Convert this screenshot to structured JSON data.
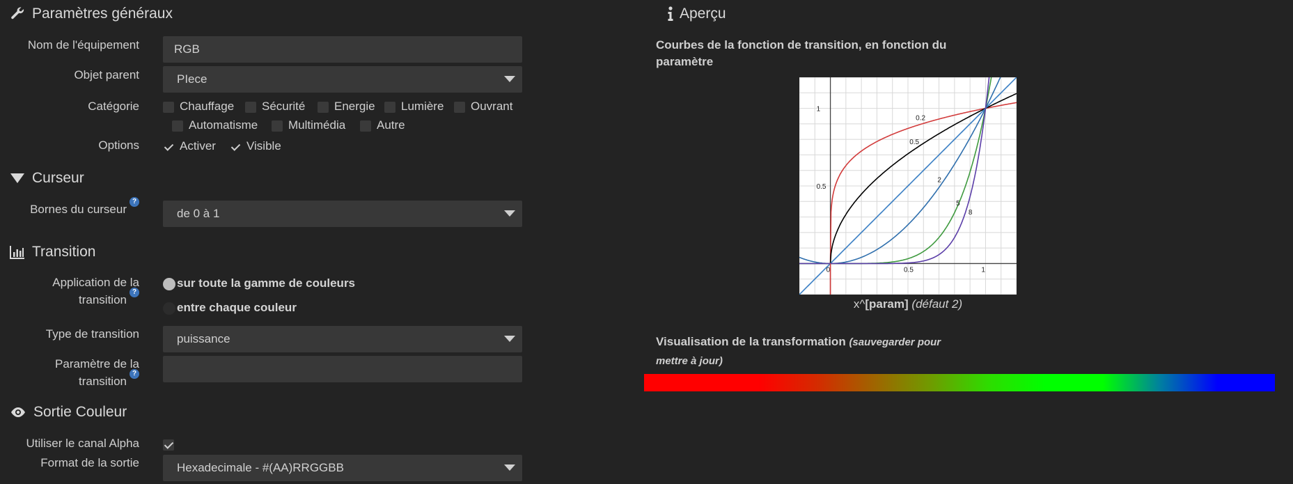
{
  "general": {
    "title": "Paramètres généraux",
    "name_label": "Nom de l'équipement",
    "name_value": "RGB",
    "parent_label": "Objet parent",
    "parent_value": "PIece",
    "category_label": "Catégorie",
    "categories": [
      {
        "label": "Chauffage",
        "checked": false
      },
      {
        "label": "Sécurité",
        "checked": false
      },
      {
        "label": "Energie",
        "checked": false
      },
      {
        "label": "Lumière",
        "checked": false
      },
      {
        "label": "Ouvrant",
        "checked": false
      },
      {
        "label": "Automatisme",
        "checked": false
      },
      {
        "label": "Multimédia",
        "checked": false
      },
      {
        "label": "Autre",
        "checked": false
      }
    ],
    "options_label": "Options",
    "options": [
      {
        "label": "Activer",
        "checked": true
      },
      {
        "label": "Visible",
        "checked": true
      }
    ]
  },
  "cursor": {
    "title": "Curseur",
    "bounds_label": "Bornes du curseur",
    "bounds_value": "de 0 à 1"
  },
  "transition": {
    "title": "Transition",
    "application_label_1": "Application de la",
    "application_label_2": "transition",
    "application_options": [
      {
        "label": "sur toute la gamme de couleurs",
        "selected": true
      },
      {
        "label": "entre chaque couleur",
        "selected": false
      }
    ],
    "type_label": "Type de transition",
    "type_value": "puissance",
    "param_label_1": "Paramètre de la",
    "param_label_2": "transition",
    "param_value": ""
  },
  "output": {
    "title": "Sortie Couleur",
    "alpha_label": "Utiliser le canal Alpha",
    "alpha_checked": true,
    "format_label": "Format de la sortie",
    "format_value": "Hexadecimale - #(AA)RRGGBB"
  },
  "preview": {
    "title": "Aperçu",
    "curves_title_1": "Courbes de la fonction de transition, en fonction du",
    "curves_title_2": "paramètre",
    "caption_prefix": "x^",
    "caption_param": "[param]",
    "caption_default": "(défaut 2)",
    "viz_title": "Visualisation de la transformation",
    "viz_note_1": "(sauvegarder pour",
    "viz_note_2": "mettre à jour)",
    "gradient_colors": [
      "#ff0000",
      "#ff0000",
      "#ff0000",
      "#d52a00",
      "#a06400",
      "#6f9b00",
      "#2edc00",
      "#00ff00",
      "#00ff00",
      "#007fa0",
      "#0000ff",
      "#0000ff"
    ]
  },
  "chart_data": {
    "type": "line",
    "title": "",
    "xlabel": "",
    "ylabel": "",
    "xlim": [
      -0.2,
      1.2
    ],
    "ylim": [
      -0.2,
      1.2
    ],
    "grid": true,
    "x_ticks": [
      "0",
      "0.5",
      "1"
    ],
    "y_ticks": [
      "0.5",
      "1"
    ],
    "function": "x^param",
    "series": [
      {
        "name": "0.2",
        "param": 0.2,
        "color": "#d23b3b"
      },
      {
        "name": "0.5",
        "param": 0.5,
        "color": "#000000"
      },
      {
        "name": "1",
        "param": 1,
        "color": "#3a7fc4"
      },
      {
        "name": "2",
        "param": 2,
        "color": "#2f6fad"
      },
      {
        "name": "5",
        "param": 5,
        "color": "#3f9a3f"
      },
      {
        "name": "8",
        "param": 8,
        "color": "#5b3ea8"
      }
    ]
  }
}
